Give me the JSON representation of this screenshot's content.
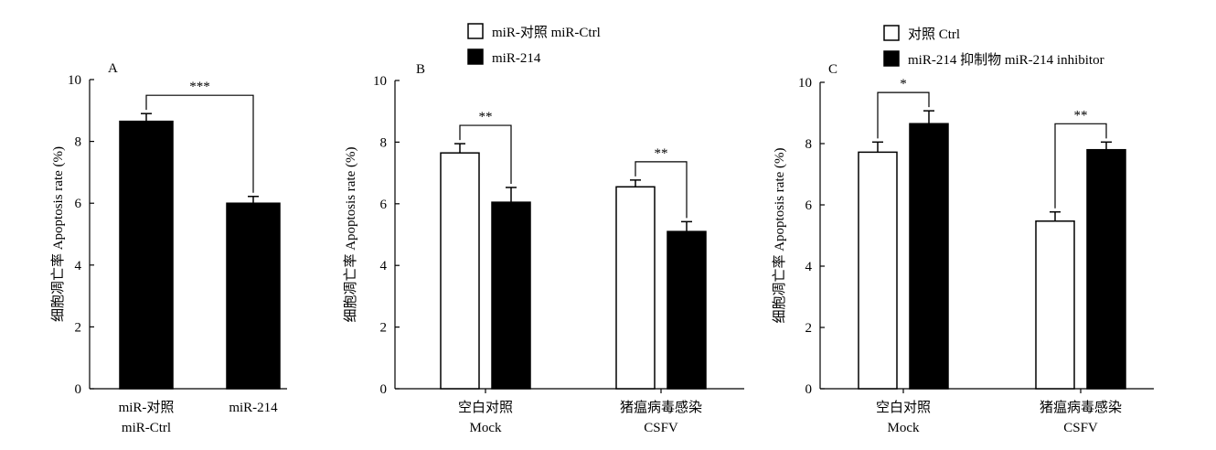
{
  "chart_data": [
    {
      "type": "bar",
      "panel_label": "A",
      "ylabel": "细胞凋亡率 Apoptosis rate (%)",
      "ylim": [
        0,
        10
      ],
      "yticks": [
        "0",
        "2",
        "4",
        "6",
        "8",
        "10"
      ],
      "categories": [
        {
          "line1": "miR-对照",
          "line2": "miR-Ctrl"
        },
        {
          "line1": "miR-214",
          "line2": ""
        }
      ],
      "series": [
        {
          "fill": "#000000",
          "values": [
            8.65,
            6.0
          ],
          "errors": [
            0.25,
            0.22
          ]
        }
      ],
      "significance": [
        {
          "group": null,
          "a": [
            0,
            0
          ],
          "b": [
            1,
            0
          ],
          "label": "***"
        }
      ],
      "legend": []
    },
    {
      "type": "bar",
      "panel_label": "B",
      "ylabel": "细胞凋亡率 Apoptosis rate (%)",
      "ylim": [
        0,
        10
      ],
      "yticks": [
        "0",
        "2",
        "4",
        "6",
        "8",
        "10"
      ],
      "categories": [
        {
          "line1": "空白对照",
          "line2": "Mock"
        },
        {
          "line1": "猪瘟病毒感染",
          "line2": "CSFV"
        }
      ],
      "series": [
        {
          "name": "miR-对照 miR-Ctrl",
          "fill": "#ffffff",
          "values": [
            7.65,
            6.55
          ],
          "errors": [
            0.3,
            0.22
          ]
        },
        {
          "name": "miR-214",
          "fill": "#000000",
          "values": [
            6.05,
            5.1
          ],
          "errors": [
            0.48,
            0.32
          ]
        }
      ],
      "significance": [
        {
          "a": [
            0,
            0
          ],
          "b": [
            0,
            1
          ],
          "label": "**"
        },
        {
          "a": [
            1,
            0
          ],
          "b": [
            1,
            1
          ],
          "label": "**"
        }
      ],
      "legend": [
        {
          "label": "miR-对照 miR-Ctrl",
          "fill": "#ffffff"
        },
        {
          "label": "miR-214",
          "fill": "#000000"
        }
      ]
    },
    {
      "type": "bar",
      "panel_label": "C",
      "ylabel": "细胞凋亡率 Apoptosis rate (%)",
      "ylim": [
        0,
        10
      ],
      "yticks": [
        "0",
        "2",
        "4",
        "6",
        "8",
        "10"
      ],
      "categories": [
        {
          "line1": "空白对照",
          "line2": "Mock"
        },
        {
          "line1": "猪瘟病毒感染",
          "line2": "CSFV"
        }
      ],
      "series": [
        {
          "name": "对照 Ctrl",
          "fill": "#ffffff",
          "values": [
            7.72,
            5.47
          ],
          "errors": [
            0.33,
            0.3
          ]
        },
        {
          "name": "miR-214 抑制物 miR-214 inhibitor",
          "fill": "#000000",
          "values": [
            8.65,
            7.8
          ],
          "errors": [
            0.42,
            0.25
          ]
        }
      ],
      "significance": [
        {
          "a": [
            0,
            0
          ],
          "b": [
            0,
            1
          ],
          "label": "*"
        },
        {
          "a": [
            1,
            0
          ],
          "b": [
            1,
            1
          ],
          "label": "**"
        }
      ],
      "legend": [
        {
          "label": "对照 Ctrl",
          "fill": "#ffffff"
        },
        {
          "label": "miR-214 抑制物 miR-214 inhibitor",
          "fill": "#000000"
        }
      ]
    }
  ]
}
